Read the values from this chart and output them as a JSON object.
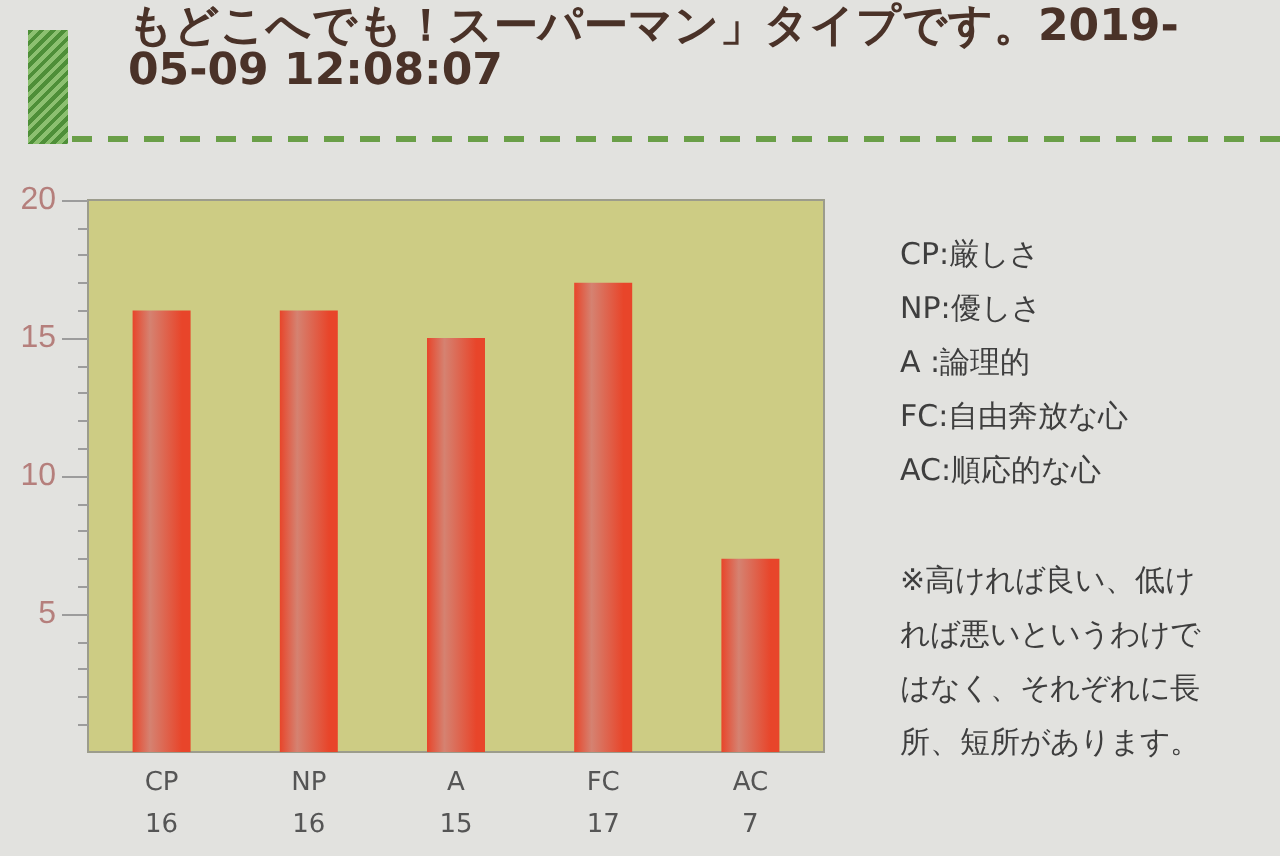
{
  "chart_data": {
    "type": "bar",
    "title": "もどこへでも！スーパーマン」タイプです。2019-05-09 12:08:07",
    "categories": [
      "CP",
      "NP",
      "A",
      "FC",
      "AC"
    ],
    "values": [
      16,
      16,
      15,
      17,
      7
    ],
    "color": "#e8452a",
    "ylim": [
      0,
      20
    ],
    "yticks": [
      {
        "value": 1,
        "label": null
      },
      {
        "value": 2,
        "label": null
      },
      {
        "value": 3,
        "label": null
      },
      {
        "value": 4,
        "label": null
      },
      5,
      {
        "value": 6,
        "label": null
      },
      {
        "value": 7,
        "label": null
      },
      {
        "value": 8,
        "label": null
      },
      {
        "value": 9,
        "label": null
      },
      10,
      {
        "value": 11,
        "label": null
      },
      {
        "value": 12,
        "label": null
      },
      {
        "value": 13,
        "label": null
      },
      {
        "value": 14,
        "label": null
      },
      15,
      {
        "value": 16,
        "label": null
      },
      {
        "value": 17,
        "label": null
      },
      {
        "value": 18,
        "label": null
      },
      {
        "value": 19,
        "label": null
      },
      20
    ],
    "data_labels": true,
    "annotations": [
      "CP:厳しさ",
      "NP:優しさ",
      "A :論理的",
      "FC:自由奔放な心",
      "AC:順応的な心",
      "※高ければ良い、低ければ悪いというわけではなく、それぞれに長所、短所があります。"
    ]
  }
}
